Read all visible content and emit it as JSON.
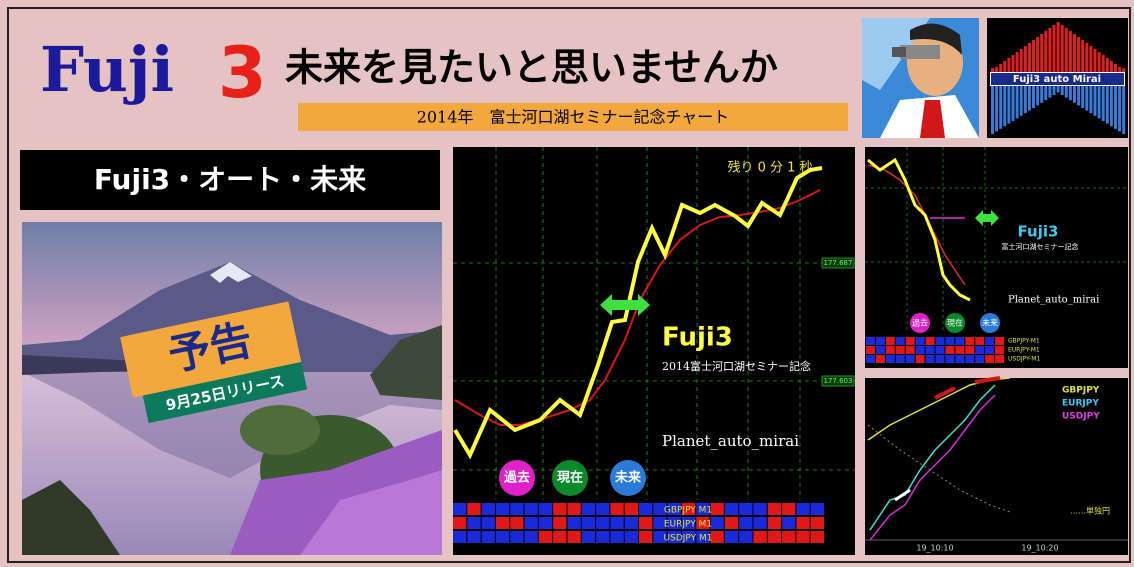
{
  "header": {
    "brand": "Fuji",
    "brand_number": "3",
    "headline": "未来を見たいと思いませんか",
    "subtitle": "2014年　富士河口湖セミナー記念チャート"
  },
  "thumbnail": {
    "label": "Fuji3 auto Mirai"
  },
  "left_panel": {
    "title": "Fuji3・オート・未来",
    "badge_title": "予告",
    "badge_date": "9月25日リリース"
  },
  "main_chart": {
    "timer": "残り 0 分 1 秒",
    "price_labels": [
      "177.687",
      "177.603"
    ],
    "title": "Fuji3",
    "caption": "2014富士河口湖セミナー記念",
    "name": "Planet_auto_mirai",
    "buttons": [
      "過去",
      "現在",
      "未来"
    ],
    "rows": [
      "GBPJPY M1",
      "EURJPY M1",
      "USDJPY M1"
    ]
  },
  "side_chart_top": {
    "title": "Fuji3",
    "caption": "富士河口湖セミナー記念",
    "name": "Planet_auto_mirai",
    "buttons": [
      "過去",
      "現在",
      "未来"
    ],
    "rows": [
      "GBPJPY-M1",
      "EURJPY-M1",
      "USDJPY-M1"
    ]
  },
  "side_chart_bottom": {
    "legend": [
      "GBPJPY",
      "EURJPY",
      "USDJPY"
    ],
    "note": "……単独円",
    "x_labels": [
      "19_10:10",
      "19_10:20"
    ]
  }
}
